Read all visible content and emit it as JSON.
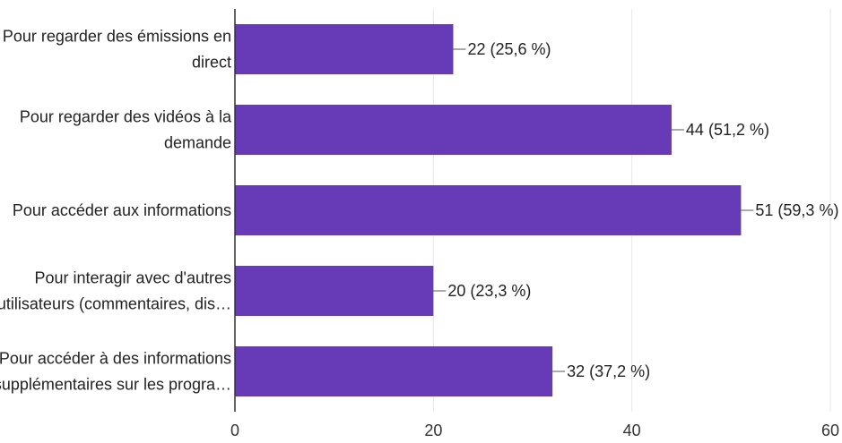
{
  "chart_data": {
    "type": "bar",
    "orientation": "horizontal",
    "categories": [
      [
        "Pour regarder des émissions en",
        "direct"
      ],
      [
        "Pour regarder des vidéos à la",
        "demande"
      ],
      [
        "Pour accéder aux informations"
      ],
      [
        "Pour interagir avec d'autres",
        "utilisateurs (commentaires, dis…"
      ],
      [
        "Pour accéder à des informations",
        "supplémentaires sur les progra…"
      ]
    ],
    "values": [
      22,
      44,
      51,
      20,
      32
    ],
    "data_labels": [
      "22 (25,6 %)",
      "44 (51,2 %)",
      "51 (59,3 %)",
      "20 (23,3 %)",
      "32 (37,2 %)"
    ],
    "xlim": [
      0,
      60
    ],
    "xticks": [
      0,
      20,
      40,
      60
    ],
    "grid": true,
    "bar_color": "#673ab7",
    "grid_color": "#e6e6e6",
    "axis_color": "#333333"
  }
}
